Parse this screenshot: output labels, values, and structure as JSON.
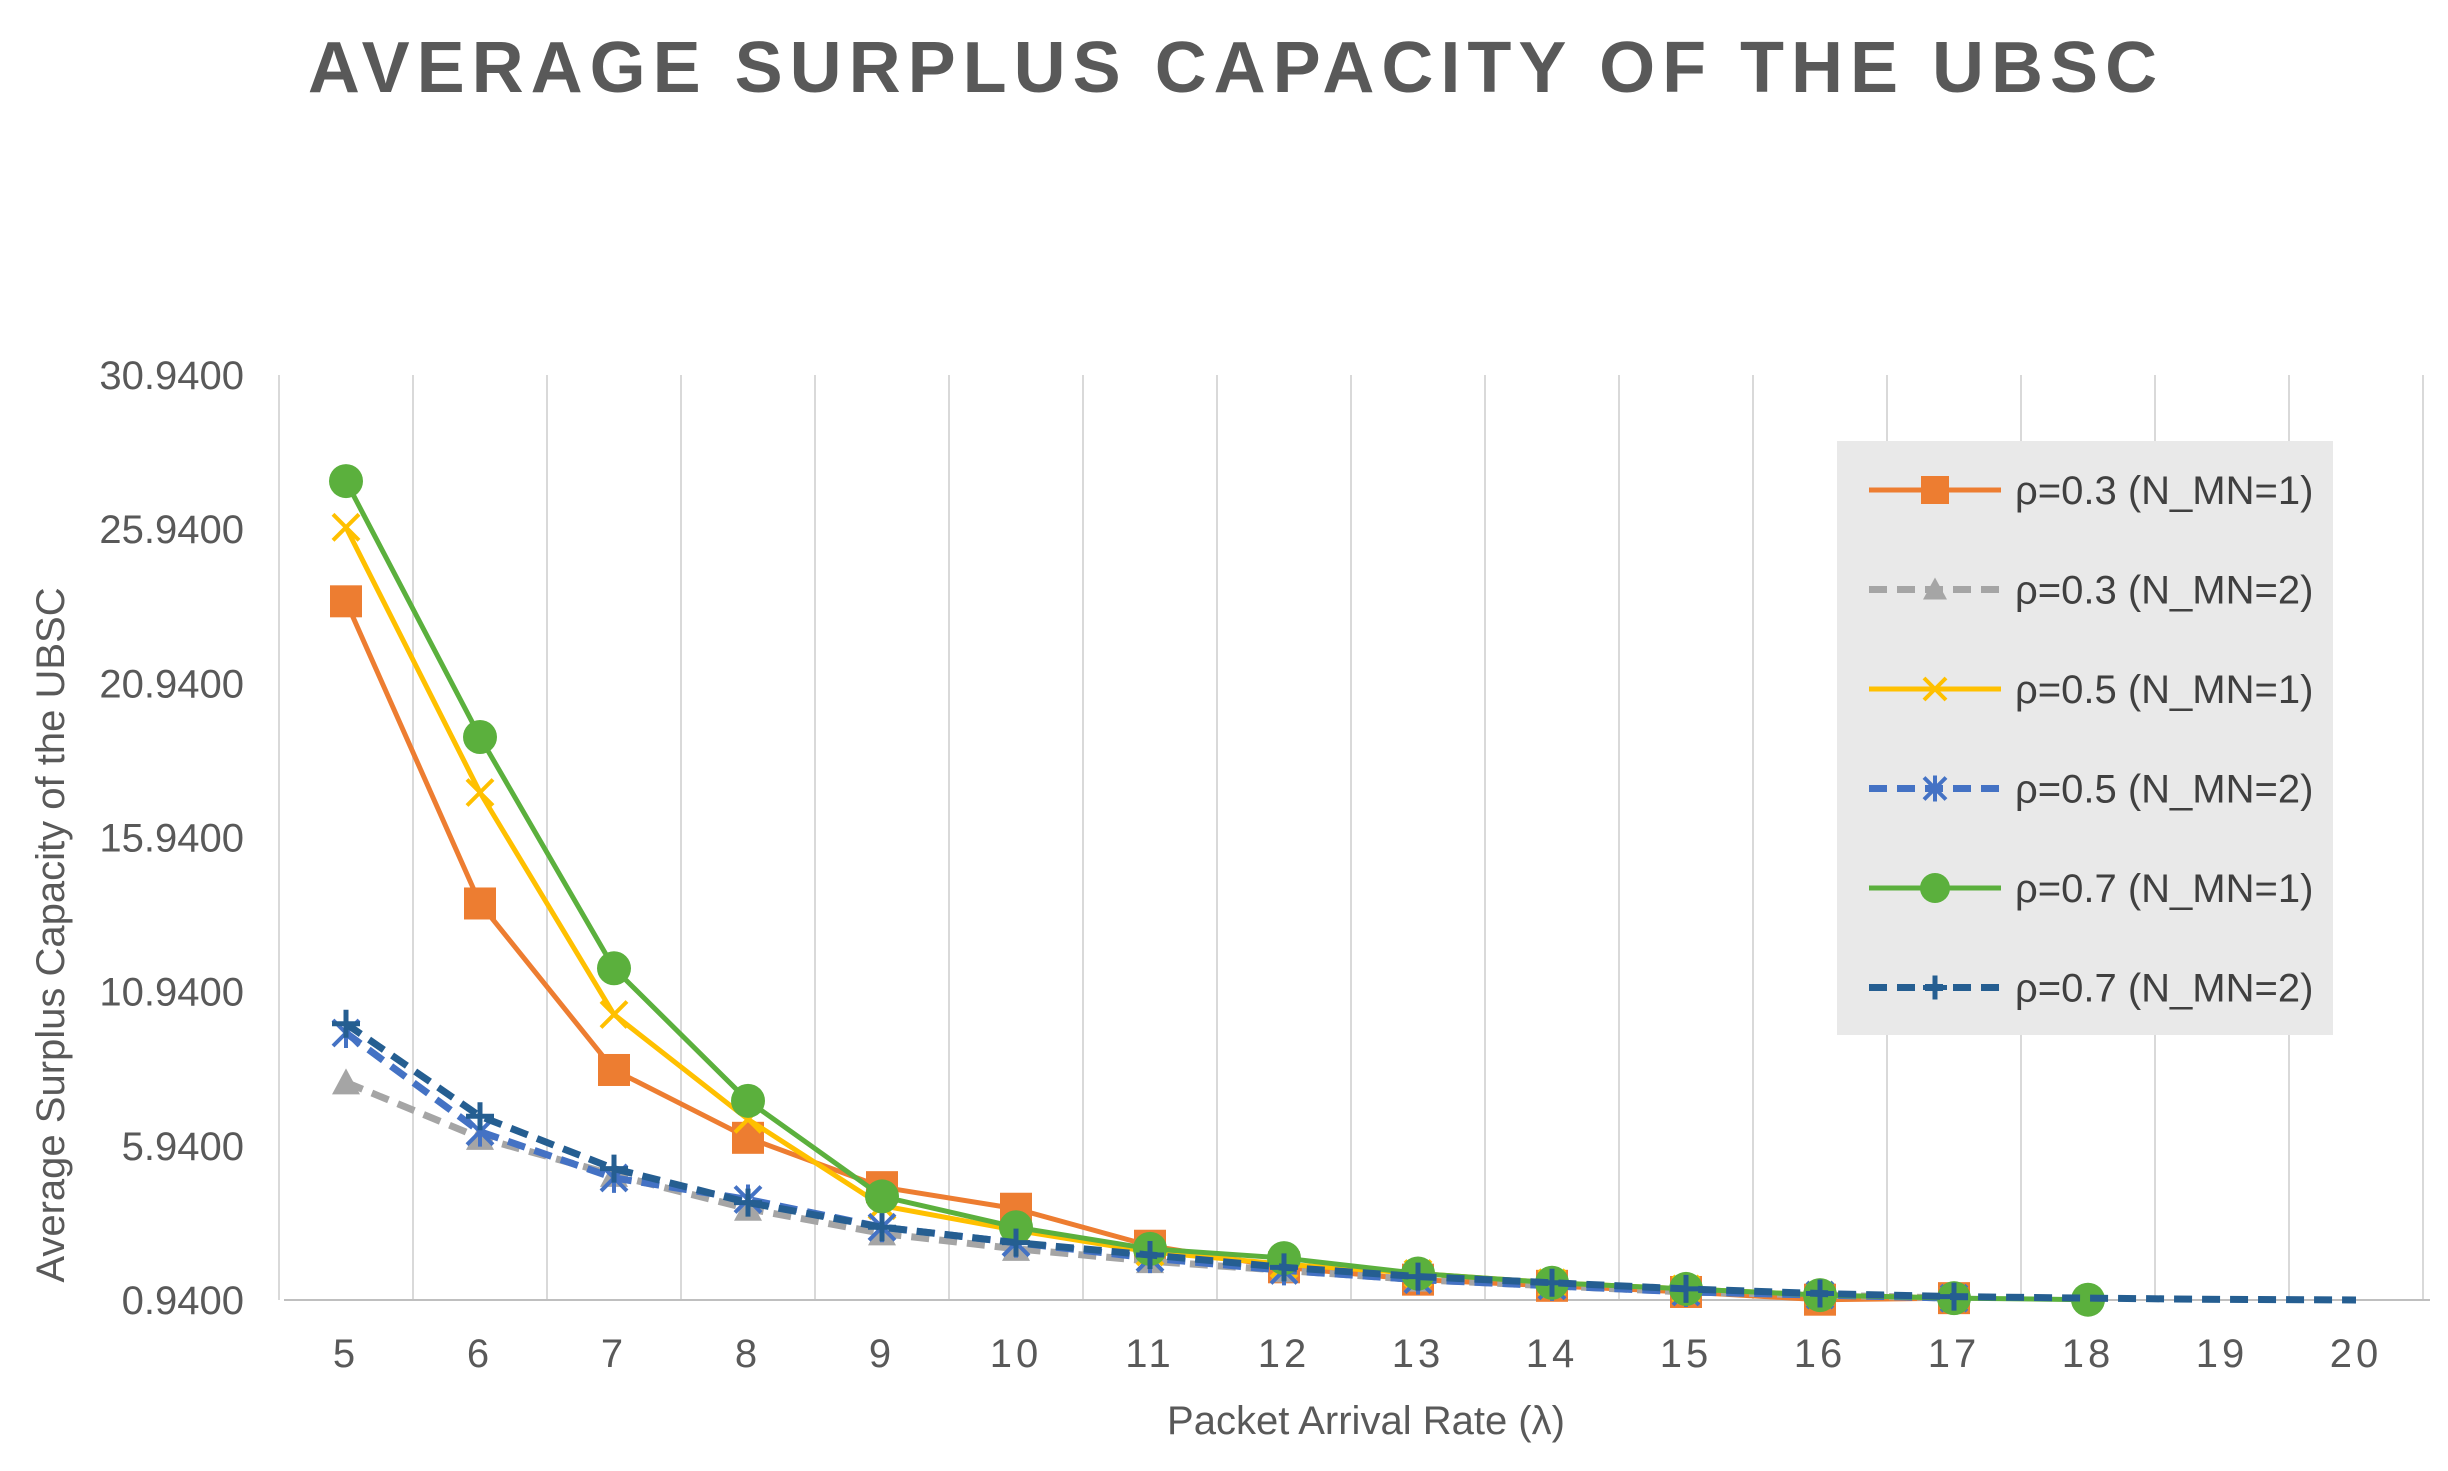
{
  "chart_data": {
    "type": "line",
    "title": "AVERAGE SURPLUS CAPACITY OF THE UBSC",
    "xlabel": "Packet Arrival Rate  (λ)",
    "ylabel": "Average Surplus Capacity of the UBSC",
    "x": [
      5,
      6,
      7,
      8,
      9,
      10,
      11,
      12,
      13,
      14,
      15,
      16,
      17,
      18,
      19,
      20
    ],
    "x_tick_labels": [
      "5",
      "6",
      "7",
      "8",
      "9",
      "10",
      "11",
      "12",
      "13",
      "14",
      "15",
      "16",
      "17",
      "18",
      "19",
      "20"
    ],
    "ylim": [
      0.94,
      30.94
    ],
    "y_ticks": [
      0.94,
      5.94,
      10.94,
      15.94,
      20.94,
      25.94,
      30.94
    ],
    "y_tick_labels": [
      "0.9400",
      "5.9400",
      "10.9400",
      "15.9400",
      "20.9400",
      "25.9400",
      "30.9400"
    ],
    "grid": "vertical",
    "legend_position": "right",
    "series": [
      {
        "name": "ρ=0.3 (N_MN=1)",
        "color": "#ED7D31",
        "marker": "square",
        "dash": "solid",
        "x": [
          5,
          6,
          7,
          8,
          9,
          10,
          11,
          12,
          13,
          14,
          15,
          16,
          17
        ],
        "values": [
          23.6,
          13.8,
          8.4,
          6.2,
          4.6,
          3.9,
          2.7,
          2.0,
          1.6,
          1.4,
          1.2,
          0.95,
          1.0
        ]
      },
      {
        "name": "ρ=0.3 (N_MN=2)",
        "color": "#A5A5A5",
        "marker": "triangle",
        "dash": "dashed",
        "x": [
          5,
          6,
          7,
          8,
          9,
          10,
          11,
          12,
          13,
          14,
          15,
          16,
          17
        ],
        "values": [
          8.0,
          6.2,
          5.0,
          3.9,
          3.1,
          2.6,
          2.2,
          1.9,
          1.6,
          1.4,
          1.2,
          1.1,
          1.0
        ]
      },
      {
        "name": "ρ=0.5 (N_MN=1)",
        "color": "#FFC000",
        "marker": "x",
        "dash": "solid",
        "x": [
          5,
          6,
          7,
          8,
          9,
          10,
          11,
          12,
          13,
          14,
          15,
          16,
          17
        ],
        "values": [
          26.0,
          17.4,
          10.2,
          6.8,
          4.0,
          3.2,
          2.5,
          2.1,
          1.8,
          1.5,
          1.3,
          1.1,
          1.0
        ]
      },
      {
        "name": "ρ=0.5 (N_MN=2)",
        "color": "#4472C4",
        "marker": "asterisk",
        "dash": "dashed",
        "x": [
          5,
          6,
          7,
          8,
          9,
          10,
          11,
          12,
          13,
          14,
          15,
          16,
          17
        ],
        "values": [
          9.6,
          6.4,
          4.9,
          4.2,
          3.3,
          2.8,
          2.3,
          1.9,
          1.6,
          1.4,
          1.2,
          1.1,
          1.0
        ]
      },
      {
        "name": "ρ=0.7 (N_MN=1)",
        "color": "#5BB03D",
        "marker": "circle",
        "dash": "solid",
        "x": [
          5,
          6,
          7,
          8,
          9,
          10,
          11,
          12,
          13,
          14,
          15,
          16,
          17,
          18
        ],
        "values": [
          27.5,
          19.2,
          11.7,
          7.4,
          4.3,
          3.3,
          2.6,
          2.3,
          1.8,
          1.5,
          1.3,
          1.1,
          1.0,
          0.95
        ]
      },
      {
        "name": "ρ=0.7 (N_MN=2)",
        "color": "#255E91",
        "marker": "plus",
        "dash": "dashed",
        "x": [
          5,
          6,
          7,
          8,
          9,
          10,
          11,
          12,
          13,
          14,
          15,
          16,
          17,
          18,
          19,
          20
        ],
        "values": [
          9.9,
          6.9,
          5.2,
          4.1,
          3.3,
          2.8,
          2.4,
          2.0,
          1.7,
          1.5,
          1.3,
          1.15,
          1.05,
          1.0,
          0.96,
          0.94
        ]
      }
    ]
  }
}
